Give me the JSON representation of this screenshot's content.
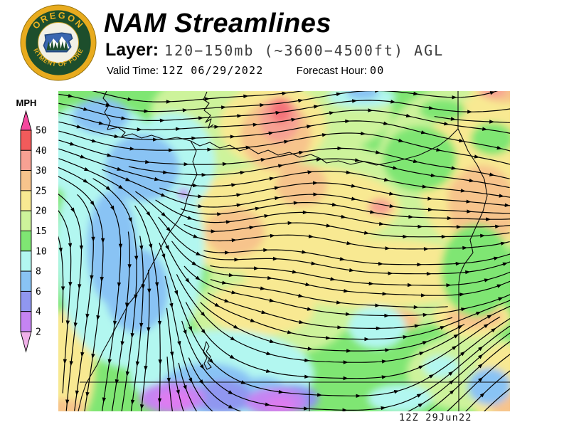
{
  "header": {
    "title": "NAM Streamlines",
    "layer_label": "Layer:",
    "layer_value": "120−150mb (~3600−4500ft) AGL",
    "valid_time_label": "Valid Time:",
    "valid_time_value": "12Z 06/29/2022",
    "forecast_hour_label": "Forecast Hour:",
    "forecast_hour_value": "00",
    "logo": {
      "text_top": "OREGON",
      "text_bottom": "DEPARTMENT OF FORESTRY",
      "ring_color": "#1d4e2c",
      "gold_color": "#e8ab1e",
      "text_gold": "#edb31f"
    }
  },
  "legend": {
    "units": "MPH",
    "ticks": [
      "50",
      "40",
      "30",
      "25",
      "20",
      "15",
      "10",
      "8",
      "6",
      "4",
      "2"
    ],
    "segment_colors": [
      "#f25b5b",
      "#f7a193",
      "#f7c48c",
      "#f8e992",
      "#cdf39b",
      "#7fe673",
      "#b2f7f0",
      "#89c3f4",
      "#9097f0",
      "#c584f2"
    ],
    "arrow_top_color": "#f5489e",
    "arrow_bottom_color": "#f0b0e8"
  },
  "map": {
    "timestamp": "12Z 29Jun22",
    "stream_color": "#000000",
    "border_color": "#0b0b0b",
    "extra_colors": {
      "red_core": "#f4737a",
      "magenta": "#de7bf0"
    }
  }
}
